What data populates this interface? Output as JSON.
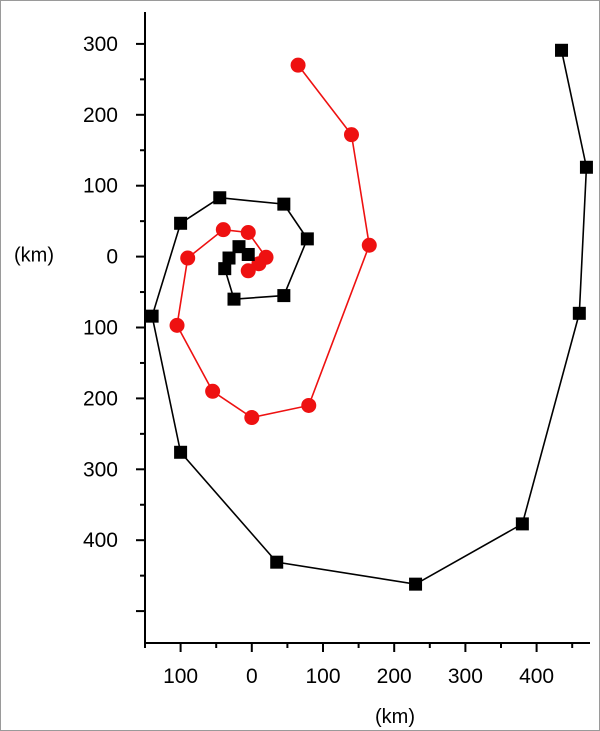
{
  "chart_data": {
    "type": "scatter",
    "title": "",
    "xlabel": "(km)",
    "ylabel": "(km)",
    "xlim": [
      -150,
      475
    ],
    "ylim": [
      -545,
      345
    ],
    "grid": false,
    "legend": "none",
    "x_ticks": [
      {
        "value": -100,
        "label": "100"
      },
      {
        "value": 0,
        "label": "0"
      },
      {
        "value": 100,
        "label": "100"
      },
      {
        "value": 200,
        "label": "200"
      },
      {
        "value": 300,
        "label": "300"
      },
      {
        "value": 400,
        "label": "400"
      }
    ],
    "y_ticks": [
      {
        "value": 300,
        "label": "300"
      },
      {
        "value": 200,
        "label": "200"
      },
      {
        "value": 100,
        "label": "100"
      },
      {
        "value": 0,
        "label": "0"
      },
      {
        "value": -100,
        "label": "100"
      },
      {
        "value": -200,
        "label": "200"
      },
      {
        "value": -300,
        "label": "300"
      },
      {
        "value": -400,
        "label": "400"
      }
    ],
    "series": [
      {
        "color": "#ee1111",
        "marker": "circle",
        "x": [
          65,
          140,
          165,
          80,
          0,
          -55,
          -105,
          -90,
          -40,
          -5,
          20,
          10,
          -5
        ],
        "y": [
          270,
          172,
          16,
          -210,
          -227,
          -190,
          -97,
          -2,
          38,
          34,
          -1,
          -10,
          -20
        ]
      },
      {
        "color": "#000000",
        "marker": "square",
        "x": [
          435,
          470,
          460,
          380,
          230,
          35,
          -100,
          -140,
          -100,
          -45,
          45,
          78,
          45,
          -25,
          -38,
          -32,
          -18,
          -5
        ],
        "y": [
          291,
          126,
          -80,
          -377,
          -462,
          -431,
          -276,
          -84,
          47,
          83,
          74,
          25,
          -55,
          -60,
          -17,
          -2,
          14,
          3
        ]
      }
    ]
  }
}
